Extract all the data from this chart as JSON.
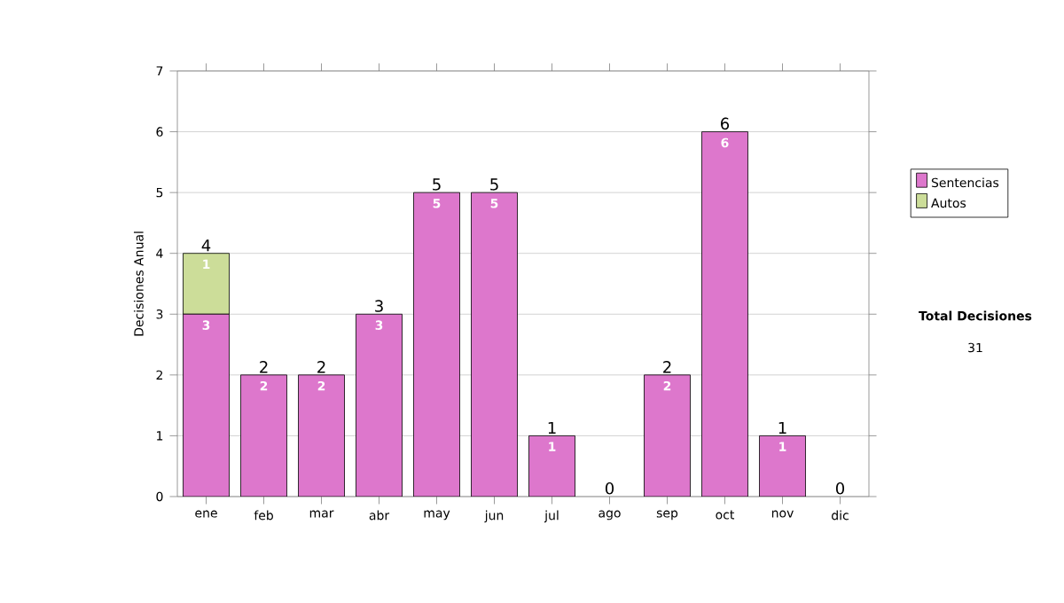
{
  "chart_data": {
    "type": "bar",
    "stacked": true,
    "ylabel": "Decisiones Anual",
    "categories": [
      "ene",
      "feb",
      "mar",
      "abr",
      "may",
      "jun",
      "jul",
      "ago",
      "sep",
      "oct",
      "nov",
      "dic"
    ],
    "series": [
      {
        "name": "Sentencias",
        "color": "#dd77cc",
        "values": [
          3,
          2,
          2,
          3,
          5,
          5,
          1,
          0,
          2,
          6,
          1,
          0
        ],
        "value_labels": [
          "3",
          "2",
          "2",
          "3",
          "5",
          "5",
          "1",
          null,
          "2",
          "6",
          "1",
          null
        ]
      },
      {
        "name": "Autos",
        "color": "#ccdd99",
        "values": [
          1,
          0,
          0,
          0,
          0,
          0,
          0,
          0,
          0,
          0,
          0,
          0
        ],
        "value_labels": [
          "1",
          null,
          null,
          null,
          null,
          null,
          null,
          null,
          null,
          null,
          null,
          null
        ]
      }
    ],
    "totals": [
      "4",
      "2",
      "2",
      "3",
      "5",
      "5",
      "1",
      "0",
      "2",
      "6",
      "1",
      "0"
    ],
    "ylim": [
      0,
      7
    ],
    "yticks": [
      0,
      1,
      2,
      3,
      4,
      5,
      6,
      7
    ],
    "grid": "y",
    "legend": "right",
    "annotations": [
      "Total Decisiones",
      "31"
    ]
  }
}
